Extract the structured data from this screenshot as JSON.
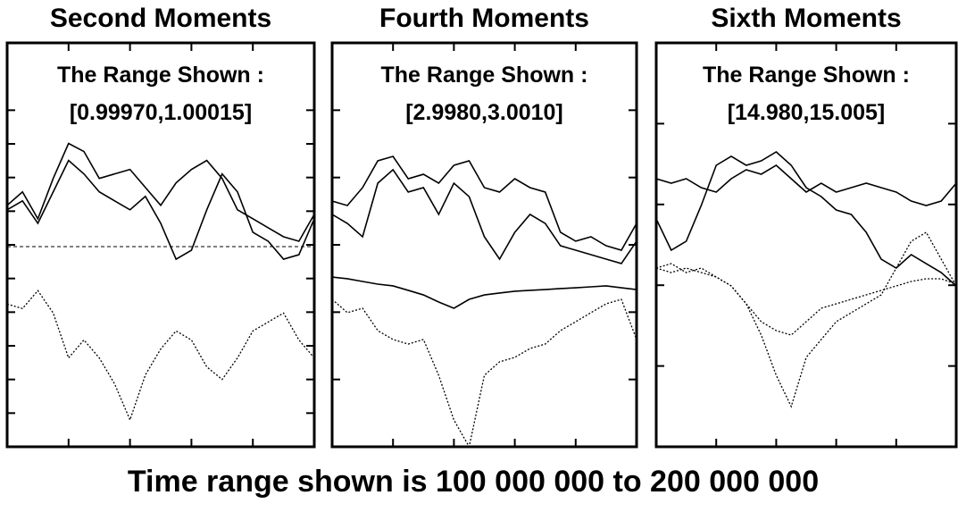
{
  "caption": "Time range shown is 100 000 000 to 200 000 000",
  "chart_data": [
    {
      "type": "line",
      "title": "Second Moments",
      "annotations": [
        "The Range Shown :",
        "[0.99970,1.00015]"
      ],
      "x": [
        100000000,
        105000000,
        110000000,
        115000000,
        120000000,
        125000000,
        130000000,
        135000000,
        140000000,
        145000000,
        150000000,
        155000000,
        160000000,
        165000000,
        170000000,
        175000000,
        180000000,
        185000000,
        190000000,
        195000000,
        200000000
      ],
      "xlim": [
        100000000,
        200000000
      ],
      "xticks": [
        120000000,
        140000000,
        160000000,
        180000000
      ],
      "ylim": [
        0.9997,
        1.00015
      ],
      "yticks": [
        1.000075,
        1.0000375,
        1.0,
        0.9999625,
        0.999925,
        0.9998875,
        0.99985,
        0.9998125,
        0.999775,
        0.9997375
      ],
      "hline": {
        "value": 0.999923,
        "color": "#000",
        "dash": "dashed"
      },
      "series": [
        {
          "color": "#000",
          "dash": "solid",
          "values": [
            0.999969,
            0.999984,
            0.999954,
            0.999999,
            1.000038,
            1.000029,
            0.999999,
            1.000004,
            1.000009,
            0.999989,
            0.999969,
            0.999994,
            1.000009,
            1.000019,
            0.999999,
            0.999964,
            0.999954,
            0.999944,
            0.999934,
            0.999929,
            0.999959
          ]
        },
        {
          "color": "#000",
          "dash": "solid",
          "values": [
            0.999964,
            0.999974,
            0.999949,
            0.999984,
            1.000019,
            1.000004,
            0.999984,
            0.999974,
            0.999964,
            0.999979,
            0.999949,
            0.999909,
            0.999919,
            0.999964,
            1.000004,
            0.999984,
            0.999939,
            0.999929,
            0.999909,
            0.999914,
            0.999954
          ]
        },
        {
          "color": "#000",
          "dash": "dotted",
          "values": [
            0.999859,
            0.999854,
            0.999874,
            0.999849,
            0.999799,
            0.999819,
            0.999799,
            0.99977,
            0.99973,
            0.99978,
            0.999809,
            0.999829,
            0.999819,
            0.999789,
            0.999775,
            0.999799,
            0.999829,
            0.999839,
            0.999849,
            0.999819,
            0.999799
          ]
        }
      ]
    },
    {
      "type": "line",
      "title": "Fourth Moments",
      "annotations": [
        "The Range Shown :",
        "[2.9980,3.0010]"
      ],
      "x": [
        100000000,
        105000000,
        110000000,
        115000000,
        120000000,
        125000000,
        130000000,
        135000000,
        140000000,
        145000000,
        150000000,
        155000000,
        160000000,
        165000000,
        170000000,
        175000000,
        180000000,
        185000000,
        190000000,
        195000000,
        200000000
      ],
      "xlim": [
        100000000,
        200000000
      ],
      "xticks": [
        120000000,
        140000000,
        160000000,
        180000000
      ],
      "ylim": [
        2.998,
        3.001
      ],
      "yticks": [
        3.0005,
        3.0,
        2.9995,
        2.999,
        2.9985
      ],
      "series": [
        {
          "color": "#000",
          "dash": "solid",
          "values": [
            2.999825,
            2.999792,
            2.999925,
            3.000124,
            3.000157,
            2.999991,
            3.000024,
            2.999958,
            3.000091,
            3.000124,
            2.999925,
            2.999892,
            2.999991,
            2.999925,
            2.999892,
            2.999593,
            2.999527,
            2.99956,
            2.999493,
            2.99946,
            2.999659
          ]
        },
        {
          "color": "#000",
          "dash": "solid",
          "values": [
            2.999726,
            2.999659,
            2.99956,
            2.999958,
            3.000058,
            2.999892,
            2.999925,
            2.999726,
            2.999958,
            2.999858,
            2.99956,
            2.999394,
            2.999593,
            2.999726,
            2.999659,
            2.999493,
            2.99946,
            2.999427,
            2.999394,
            2.999361,
            2.999527
          ]
        },
        {
          "color": "#000",
          "dash": "solid",
          "values": [
            2.999261,
            2.999248,
            2.999228,
            2.999208,
            2.999195,
            2.999162,
            2.999128,
            2.999075,
            2.999029,
            2.999095,
            2.999128,
            2.999142,
            2.999155,
            2.999162,
            2.999168,
            2.999175,
            2.999181,
            2.999188,
            2.999195,
            2.999181,
            2.999168
          ]
        },
        {
          "color": "#000",
          "dash": "dotted",
          "values": [
            2.999095,
            2.998996,
            2.999029,
            2.998863,
            2.998797,
            2.998763,
            2.998797,
            2.998531,
            2.998199,
            2.998,
            2.998531,
            2.998631,
            2.998664,
            2.99873,
            2.998763,
            2.998863,
            2.998929,
            2.998996,
            2.999062,
            2.999095,
            2.998797
          ]
        }
      ]
    },
    {
      "type": "line",
      "title": "Sixth Moments",
      "annotations": [
        "The Range Shown :",
        "[14.980,15.005]"
      ],
      "x": [
        100000000,
        105000000,
        110000000,
        115000000,
        120000000,
        125000000,
        130000000,
        135000000,
        140000000,
        145000000,
        150000000,
        155000000,
        160000000,
        165000000,
        170000000,
        175000000,
        180000000,
        185000000,
        190000000,
        195000000,
        200000000
      ],
      "xlim": [
        100000000,
        200000000
      ],
      "xticks": [
        120000000,
        140000000,
        160000000,
        180000000
      ],
      "ylim": [
        14.98,
        15.005
      ],
      "yticks": [
        15.0,
        14.995,
        14.99,
        14.985
      ],
      "series": [
        {
          "color": "#000",
          "dash": "solid",
          "values": [
            14.996593,
            14.996316,
            14.996593,
            14.99604,
            14.995763,
            14.996593,
            14.997146,
            14.99687,
            14.997423,
            14.996593,
            14.995763,
            14.996316,
            14.995763,
            14.99604,
            14.996316,
            14.99604,
            14.995763,
            14.99521,
            14.994934,
            14.99521,
            14.996316
          ]
        },
        {
          "color": "#000",
          "dash": "solid",
          "values": [
            14.994104,
            14.992168,
            14.992721,
            14.994934,
            14.997423,
            14.997976,
            14.997423,
            14.997699,
            14.998252,
            14.997423,
            14.99604,
            14.995487,
            14.994657,
            14.99438,
            14.993274,
            14.991615,
            14.991062,
            14.991892,
            14.991338,
            14.990785,
            14.989956
          ]
        },
        {
          "color": "#000",
          "dash": "dotted",
          "values": [
            14.991062,
            14.991338,
            14.990785,
            14.991062,
            14.990509,
            14.989956,
            14.988849,
            14.986914,
            14.984425,
            14.982489,
            14.985531,
            14.986637,
            14.987743,
            14.988296,
            14.988849,
            14.989403,
            14.991062,
            14.992721,
            14.993274,
            14.991615,
            14.989956
          ]
        },
        {
          "color": "#000",
          "dash": "dotted",
          "values": [
            14.991062,
            14.990785,
            14.991062,
            14.990785,
            14.990509,
            14.989956,
            14.988849,
            14.987743,
            14.98719,
            14.986914,
            14.987743,
            14.988573,
            14.988849,
            14.989126,
            14.989403,
            14.989679,
            14.989956,
            14.990232,
            14.990398,
            14.990398,
            14.990066
          ]
        }
      ]
    }
  ]
}
